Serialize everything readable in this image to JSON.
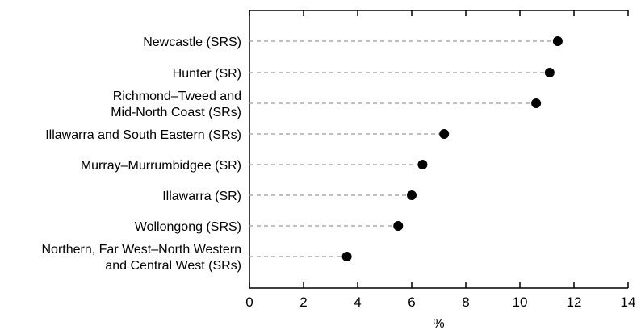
{
  "chart_data": {
    "type": "scatter",
    "title": "",
    "xlabel": "%",
    "ylabel": "",
    "xlim": [
      0,
      14
    ],
    "xticks": [
      "0",
      "2",
      "4",
      "6",
      "8",
      "10",
      "12",
      "14"
    ],
    "categories": [
      [
        "Newcastle (SRS)"
      ],
      [
        "Hunter (SR)"
      ],
      [
        "Richmond–Tweed and",
        "Mid-North Coast (SRs)"
      ],
      [
        "Illawarra and South Eastern (SRs)"
      ],
      [
        "Murray–Murrumbidgee (SR)"
      ],
      [
        "Illawarra (SR)"
      ],
      [
        "Wollongong (SRS)"
      ],
      [
        "Northern, Far West–North Western",
        "and Central West (SRs)"
      ]
    ],
    "values": [
      11.4,
      11.1,
      10.6,
      7.2,
      6.4,
      6.0,
      5.5,
      3.6
    ],
    "grid": false,
    "leader_lines": "dashed",
    "marker_color": "#000000",
    "leader_color": "#9a9a9a"
  }
}
